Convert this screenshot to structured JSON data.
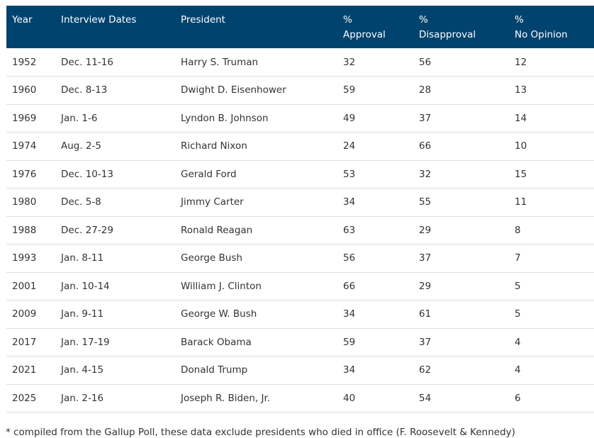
{
  "headers": [
    [
      "Year",
      ""
    ],
    [
      "Interview Dates",
      ""
    ],
    [
      "President",
      ""
    ],
    [
      "%",
      "Approval"
    ],
    [
      "%",
      "Disapproval"
    ],
    [
      "%",
      "No Opinion"
    ]
  ],
  "rows": [
    [
      "1952",
      "Dec. 11-16",
      "Harry S. Truman",
      "32",
      "56",
      "12"
    ],
    [
      "1960",
      "Dec. 8-13",
      "Dwight D. Eisenhower",
      "59",
      "28",
      "13"
    ],
    [
      "1969",
      "Jan. 1-6",
      "Lyndon B. Johnson",
      "49",
      "37",
      "14"
    ],
    [
      "1974",
      "Aug. 2-5",
      "Richard Nixon",
      "24",
      "66",
      "10"
    ],
    [
      "1976",
      "Dec. 10-13",
      "Gerald Ford",
      "53",
      "32",
      "15"
    ],
    [
      "1980",
      "Dec. 5-8",
      "Jimmy Carter",
      "34",
      "55",
      "11"
    ],
    [
      "1988",
      "Dec. 27-29",
      "Ronald Reagan",
      "63",
      "29",
      "8"
    ],
    [
      "1993",
      "Jan. 8-11",
      "George Bush",
      "56",
      "37",
      "7"
    ],
    [
      "2001",
      "Jan. 10-14",
      "William J. Clinton",
      "66",
      "29",
      "5"
    ],
    [
      "2009",
      "Jan. 9-11",
      "George W. Bush",
      "34",
      "61",
      "5"
    ],
    [
      "2017",
      "Jan. 17-19",
      "Barack Obama",
      "59",
      "37",
      "4"
    ],
    [
      "2021",
      "Jan. 4-15",
      "Donald Trump",
      "34",
      "62",
      "4"
    ],
    [
      "2025",
      "Jan. 2-16",
      "Joseph R. Biden, Jr.",
      "40",
      "54",
      "6"
    ]
  ],
  "footnote": "* compiled from the Gallup Poll, these data exclude presidents who died in office (F. Roosevelt & Kennedy)",
  "colors": {
    "header_bg": "#00436e"
  }
}
